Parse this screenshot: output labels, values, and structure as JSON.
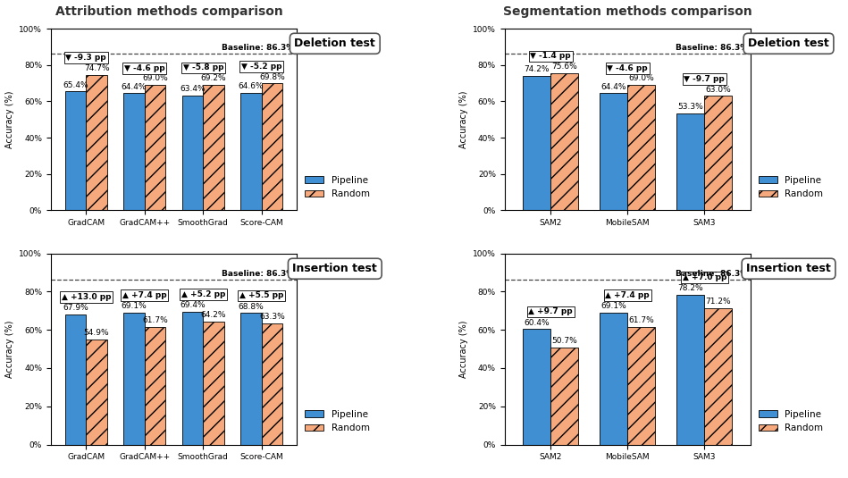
{
  "section_titles": [
    "Attribution methods comparison",
    "Segmentation methods comparison"
  ],
  "chart_data": [
    {
      "type": "bar",
      "title": "Deletion test",
      "y_label": "Accuracy (%)",
      "categories": [
        "GradCAM",
        "GradCAM++",
        "SmoothGrad",
        "Score-CAM"
      ],
      "series": [
        {
          "name": "Pipeline",
          "color": "#3f8fd2",
          "values": [
            65.4,
            64.4,
            63.4,
            64.6
          ],
          "value_labels": [
            "65.4%",
            "64.4%",
            "63.4%",
            "64.6%"
          ]
        },
        {
          "name": "Random",
          "color": "#f5a97c",
          "values": [
            74.7,
            69.0,
            69.2,
            69.8
          ],
          "value_labels": [
            "74.7%",
            "69.0%",
            "69.2%",
            "69.8%"
          ]
        }
      ],
      "delta_labels": [
        "▼ -9.3 pp",
        "▼ -4.6 pp",
        "▼ -5.8 pp",
        "▼ -5.2 pp"
      ],
      "reference_line": {
        "value": 86.3,
        "label": "Baseline: 86.3%"
      },
      "ylim": [
        0,
        100
      ],
      "yticks": [
        {
          "value": 0,
          "label": "0%"
        },
        {
          "value": 20,
          "label": "20%"
        },
        {
          "value": 40,
          "label": "40%"
        },
        {
          "value": 60,
          "label": "60%"
        },
        {
          "value": 80,
          "label": "80%"
        },
        {
          "value": 100,
          "label": "100%"
        }
      ],
      "grid": false,
      "legend": "lower right",
      "data_labels": true
    },
    {
      "type": "bar",
      "title": "Insertion test",
      "y_label": "Accuracy (%)",
      "categories": [
        "GradCAM",
        "GradCAM++",
        "SmoothGrad",
        "Score-CAM"
      ],
      "series": [
        {
          "name": "Pipeline",
          "color": "#3f8fd2",
          "values": [
            67.9,
            69.1,
            69.4,
            68.8
          ],
          "value_labels": [
            "67.9%",
            "69.1%",
            "69.4%",
            "68.8%"
          ]
        },
        {
          "name": "Random",
          "color": "#f5a97c",
          "values": [
            54.9,
            61.7,
            64.2,
            63.3
          ],
          "value_labels": [
            "54.9%",
            "61.7%",
            "64.2%",
            "63.3%"
          ]
        }
      ],
      "delta_labels": [
        "▲ +13.0 pp",
        "▲ +7.4 pp",
        "▲ +5.2 pp",
        "▲ +5.5 pp"
      ],
      "reference_line": {
        "value": 86.3,
        "label": "Baseline: 86.3%"
      },
      "ylim": [
        0,
        100
      ],
      "yticks": [
        {
          "value": 0,
          "label": "0%"
        },
        {
          "value": 20,
          "label": "20%"
        },
        {
          "value": 40,
          "label": "40%"
        },
        {
          "value": 60,
          "label": "60%"
        },
        {
          "value": 80,
          "label": "80%"
        },
        {
          "value": 100,
          "label": "100%"
        }
      ],
      "grid": false,
      "legend": "lower right",
      "data_labels": true
    },
    {
      "type": "bar",
      "title": "Deletion test",
      "y_label": "Accuracy (%)",
      "categories": [
        "SAM2",
        "MobileSAM",
        "SAM3"
      ],
      "series": [
        {
          "name": "Pipeline",
          "color": "#3f8fd2",
          "values": [
            74.2,
            64.4,
            53.3
          ],
          "value_labels": [
            "74.2%",
            "64.4%",
            "53.3%"
          ]
        },
        {
          "name": "Random",
          "color": "#f5a97c",
          "values": [
            75.6,
            69.0,
            63.0
          ],
          "value_labels": [
            "75.6%",
            "69.0%",
            "63.0%"
          ]
        }
      ],
      "delta_labels": [
        "▼ -1.4 pp",
        "▼ -4.6 pp",
        "▼ -9.7 pp"
      ],
      "reference_line": {
        "value": 86.3,
        "label": "Baseline: 86.3%"
      },
      "ylim": [
        0,
        100
      ],
      "yticks": [
        {
          "value": 0,
          "label": "0%"
        },
        {
          "value": 20,
          "label": "20%"
        },
        {
          "value": 40,
          "label": "40%"
        },
        {
          "value": 60,
          "label": "60%"
        },
        {
          "value": 80,
          "label": "80%"
        },
        {
          "value": 100,
          "label": "100%"
        }
      ],
      "grid": false,
      "legend": "lower right",
      "data_labels": true
    },
    {
      "type": "bar",
      "title": "Insertion test",
      "y_label": "Accuracy (%)",
      "categories": [
        "SAM2",
        "MobileSAM",
        "SAM3"
      ],
      "series": [
        {
          "name": "Pipeline",
          "color": "#3f8fd2",
          "values": [
            60.4,
            69.1,
            78.2
          ],
          "value_labels": [
            "60.4%",
            "69.1%",
            "78.2%"
          ]
        },
        {
          "name": "Random",
          "color": "#f5a97c",
          "values": [
            50.7,
            61.7,
            71.2
          ],
          "value_labels": [
            "50.7%",
            "61.7%",
            "71.2%"
          ]
        }
      ],
      "delta_labels": [
        "▲ +9.7 pp",
        "▲ +7.4 pp",
        "▲ +7.0 pp"
      ],
      "reference_line": {
        "value": 86.3,
        "label": "Baseline: 86.3%"
      },
      "ylim": [
        0,
        100
      ],
      "yticks": [
        {
          "value": 0,
          "label": "0%"
        },
        {
          "value": 20,
          "label": "20%"
        },
        {
          "value": 40,
          "label": "40%"
        },
        {
          "value": 60,
          "label": "60%"
        },
        {
          "value": 80,
          "label": "80%"
        },
        {
          "value": 100,
          "label": "100%"
        }
      ],
      "grid": false,
      "legend": "lower right",
      "data_labels": true
    }
  ]
}
